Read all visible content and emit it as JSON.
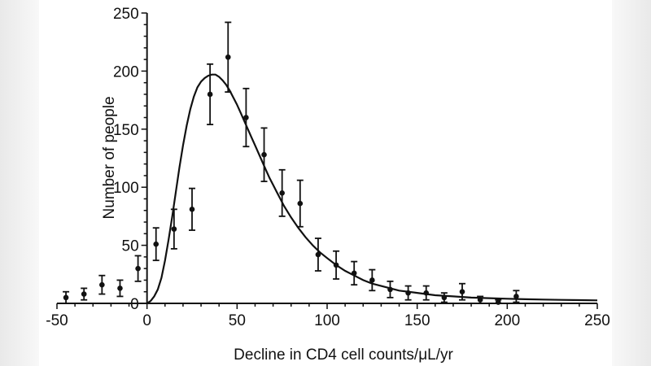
{
  "chart_data": {
    "type": "scatter",
    "title": "",
    "xlabel": "Decline in CD4 cell counts/μL/yr",
    "ylabel": "Number of people",
    "xlim": [
      -50,
      250
    ],
    "ylim": [
      0,
      250
    ],
    "x_ticks": [
      "-50",
      "0",
      "50",
      "100",
      "150",
      "200",
      "250"
    ],
    "y_ticks": [
      "0",
      "50",
      "100",
      "150",
      "200",
      "250"
    ],
    "grid": false,
    "legend": "none",
    "series": [
      {
        "type": "scatter-errorbar",
        "points": [
          {
            "x": -45,
            "y": 5,
            "err": 5
          },
          {
            "x": -35,
            "y": 8,
            "err": 5
          },
          {
            "x": -25,
            "y": 16,
            "err": 8
          },
          {
            "x": -15,
            "y": 13,
            "err": 7
          },
          {
            "x": -5,
            "y": 30,
            "err": 11
          },
          {
            "x": 5,
            "y": 51,
            "err": 14
          },
          {
            "x": 15,
            "y": 64,
            "err": 17
          },
          {
            "x": 25,
            "y": 81,
            "err": 18
          },
          {
            "x": 35,
            "y": 180,
            "err": 26
          },
          {
            "x": 45,
            "y": 212,
            "err": 30
          },
          {
            "x": 55,
            "y": 160,
            "err": 25
          },
          {
            "x": 65,
            "y": 128,
            "err": 23
          },
          {
            "x": 75,
            "y": 95,
            "err": 20
          },
          {
            "x": 85,
            "y": 86,
            "err": 20
          },
          {
            "x": 95,
            "y": 42,
            "err": 14
          },
          {
            "x": 105,
            "y": 33,
            "err": 12
          },
          {
            "x": 115,
            "y": 26,
            "err": 10
          },
          {
            "x": 125,
            "y": 20,
            "err": 9
          },
          {
            "x": 135,
            "y": 12,
            "err": 7
          },
          {
            "x": 145,
            "y": 9,
            "err": 6
          },
          {
            "x": 155,
            "y": 9,
            "err": 6
          },
          {
            "x": 165,
            "y": 5,
            "err": 4
          },
          {
            "x": 175,
            "y": 10,
            "err": 7
          },
          {
            "x": 185,
            "y": 3,
            "err": 3
          },
          {
            "x": 195,
            "y": 1,
            "err": 2
          },
          {
            "x": 205,
            "y": 6,
            "err": 5
          }
        ]
      },
      {
        "type": "line",
        "points": [
          [
            0,
            0
          ],
          [
            2,
            2
          ],
          [
            4,
            6
          ],
          [
            6,
            12
          ],
          [
            8,
            22
          ],
          [
            10,
            37
          ],
          [
            12,
            55
          ],
          [
            14,
            75
          ],
          [
            16,
            96
          ],
          [
            18,
            117
          ],
          [
            20,
            136
          ],
          [
            22,
            153
          ],
          [
            24,
            167
          ],
          [
            26,
            178
          ],
          [
            28,
            186
          ],
          [
            30,
            191
          ],
          [
            32,
            194
          ],
          [
            34,
            196
          ],
          [
            36,
            197
          ],
          [
            38,
            197
          ],
          [
            40,
            195
          ],
          [
            42,
            192
          ],
          [
            44,
            188
          ],
          [
            46,
            183
          ],
          [
            48,
            177
          ],
          [
            50,
            171
          ],
          [
            52,
            164
          ],
          [
            54,
            157
          ],
          [
            56,
            150
          ],
          [
            58,
            143
          ],
          [
            60,
            136
          ],
          [
            62,
            129
          ],
          [
            64,
            122
          ],
          [
            66,
            115
          ],
          [
            68,
            108
          ],
          [
            70,
            102
          ],
          [
            72,
            96
          ],
          [
            74,
            90
          ],
          [
            76,
            84
          ],
          [
            78,
            79
          ],
          [
            80,
            74
          ],
          [
            84,
            65
          ],
          [
            88,
            57
          ],
          [
            92,
            50
          ],
          [
            96,
            44
          ],
          [
            100,
            39
          ],
          [
            105,
            33
          ],
          [
            110,
            28
          ],
          [
            115,
            24
          ],
          [
            120,
            20
          ],
          [
            125,
            17
          ],
          [
            130,
            15
          ],
          [
            135,
            13
          ],
          [
            140,
            11
          ],
          [
            150,
            9
          ],
          [
            160,
            7
          ],
          [
            170,
            6
          ],
          [
            180,
            5
          ],
          [
            190,
            4.5
          ],
          [
            200,
            4
          ],
          [
            210,
            3.6
          ],
          [
            220,
            3.3
          ],
          [
            230,
            3
          ],
          [
            240,
            2.8
          ],
          [
            250,
            2.6
          ]
        ]
      }
    ]
  }
}
